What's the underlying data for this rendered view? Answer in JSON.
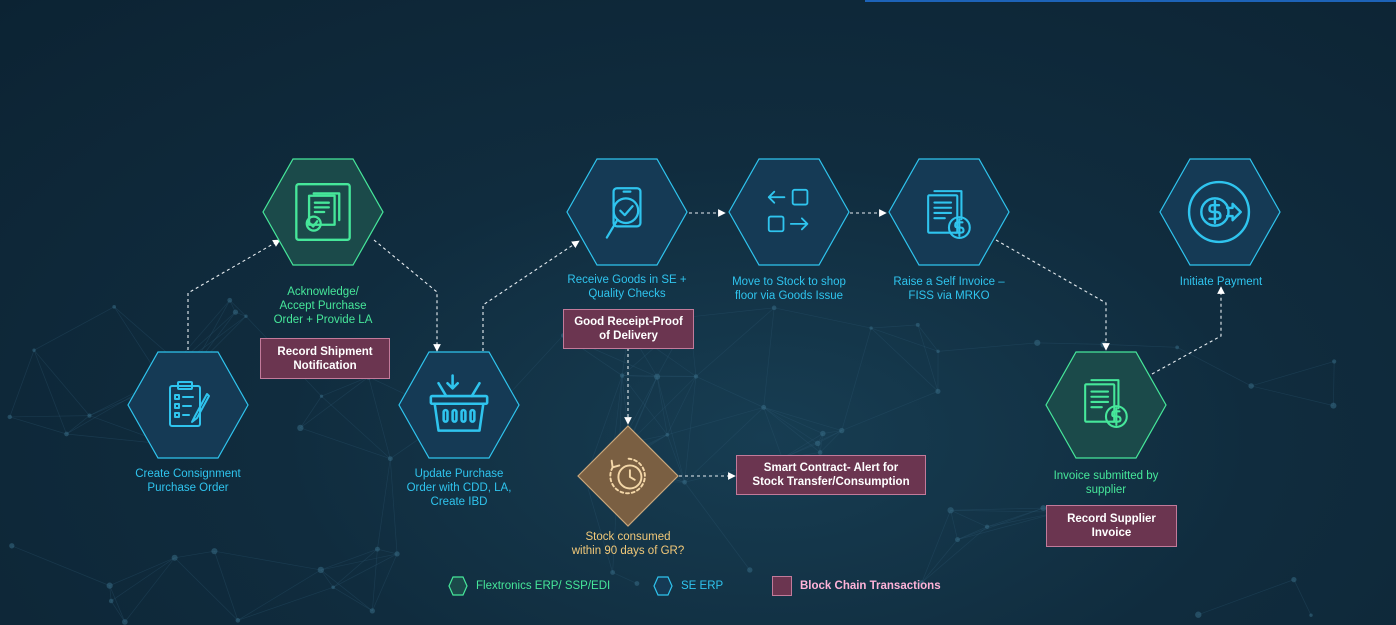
{
  "colors": {
    "background": "#102c3e",
    "se_erp": "#2fc4ee",
    "flextronics": "#46e79a",
    "blockchain_fill": "#6b3550",
    "blockchain_border": "#c27a9a",
    "decision": "#b89060"
  },
  "steps": {
    "create_po": {
      "label": "Create Consignment\nPurchase Order",
      "icon": "clipboard-checklist-icon"
    },
    "acknowledge_po": {
      "label": "Acknowledge/\nAccept Purchase\nOrder + Provide LA",
      "icon": "document-check-icon"
    },
    "update_po": {
      "label": "Update Purchase\nOrder with CDD, LA,\nCreate IBD",
      "icon": "basket-icon"
    },
    "receive_goods": {
      "label": "Receive Goods in SE +\nQuality Checks",
      "icon": "magnifier-check-icon"
    },
    "move_stock": {
      "label": "Move to Stock to shop\nfloor via Goods Issue",
      "icon": "transfer-boxes-icon"
    },
    "self_invoice": {
      "label": "Raise a Self Invoice –\nFISS via MRKO",
      "icon": "invoice-dollar-icon"
    },
    "initiate_payment": {
      "label": "Initiate Payment",
      "icon": "dollar-arrow-icon"
    },
    "invoice_submitted": {
      "label": "Invoice submitted by\nsupplier",
      "icon": "invoice-dollar-icon"
    },
    "stock_consumed": {
      "label": "Stock consumed\nwithin 90 days of GR?",
      "icon": "clock-cycle-icon"
    }
  },
  "blockchain": {
    "shipment": "Record Shipment\nNotification",
    "good_receipt": "Good Receipt-Proof\nof Delivery",
    "smart_contract": "Smart Contract- Alert for\nStock Transfer/Consumption",
    "supplier_invoice": "Record Supplier\nInvoice"
  },
  "legend": {
    "flex": "Flextronics ERP/ SSP/EDI",
    "se": "SE ERP",
    "bc": "Block Chain Transactions"
  }
}
